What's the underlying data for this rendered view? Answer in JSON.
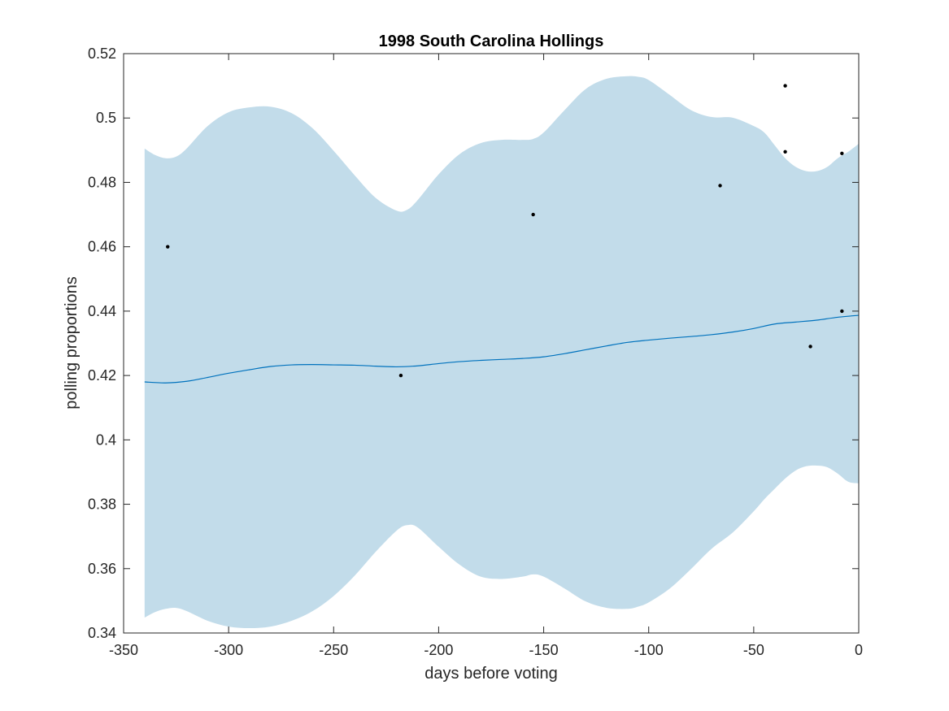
{
  "chart_data": {
    "type": "line",
    "title": "1998 South Carolina Hollings",
    "xlabel": "days before voting",
    "ylabel": "polling proportions",
    "xlim": [
      -350,
      0
    ],
    "ylim": [
      0.34,
      0.52
    ],
    "xticks": [
      -350,
      -300,
      -250,
      -200,
      -150,
      -100,
      -50,
      0
    ],
    "xtick_labels": [
      "-350",
      "-300",
      "-250",
      "-200",
      "-150",
      "-100",
      "-50",
      "0"
    ],
    "yticks": [
      0.34,
      0.36,
      0.38,
      0.4,
      0.42,
      0.44,
      0.46,
      0.48,
      0.5,
      0.52
    ],
    "ytick_labels": [
      "0.34",
      "0.36",
      "0.38",
      "0.4",
      "0.42",
      "0.44",
      "0.46",
      "0.48",
      "0.5",
      "0.52"
    ],
    "grid": false,
    "colors": {
      "band": "#c2dcea",
      "line": "#0072bd",
      "points": "#000000",
      "axes": "#262626"
    },
    "band": {
      "x": [
        -340,
        -335,
        -330,
        -325,
        -320,
        -310,
        -300,
        -290,
        -280,
        -270,
        -260,
        -250,
        -240,
        -230,
        -220,
        -215,
        -210,
        -200,
        -190,
        -180,
        -170,
        -160,
        -155,
        -150,
        -140,
        -130,
        -120,
        -110,
        -105,
        -100,
        -90,
        -80,
        -70,
        -60,
        -50,
        -45,
        -40,
        -35,
        -30,
        -25,
        -20,
        -15,
        -10,
        -5,
        0
      ],
      "upper": [
        0.4905,
        0.4885,
        0.4875,
        0.488,
        0.4905,
        0.4975,
        0.5018,
        0.5033,
        0.5035,
        0.5015,
        0.4968,
        0.4898,
        0.4822,
        0.4752,
        0.4712,
        0.4715,
        0.4745,
        0.4825,
        0.4888,
        0.4922,
        0.4932,
        0.4932,
        0.4935,
        0.4955,
        0.5025,
        0.509,
        0.5122,
        0.513,
        0.5128,
        0.5118,
        0.5072,
        0.5025,
        0.5003,
        0.5001,
        0.4975,
        0.4955,
        0.4915,
        0.4875,
        0.4848,
        0.4835,
        0.4835,
        0.4848,
        0.4875,
        0.4895,
        0.492
      ],
      "lower": [
        0.3448,
        0.3465,
        0.3475,
        0.3478,
        0.3468,
        0.3438,
        0.342,
        0.3415,
        0.342,
        0.3438,
        0.3468,
        0.3515,
        0.3578,
        0.3652,
        0.3718,
        0.3735,
        0.3728,
        0.3668,
        0.3612,
        0.3575,
        0.3568,
        0.3575,
        0.3582,
        0.3575,
        0.3538,
        0.3498,
        0.3478,
        0.3475,
        0.3482,
        0.3495,
        0.3538,
        0.3598,
        0.3662,
        0.3712,
        0.3778,
        0.3815,
        0.3848,
        0.388,
        0.3905,
        0.3918,
        0.392,
        0.3915,
        0.3895,
        0.387,
        0.3865
      ]
    },
    "series": [
      {
        "x": [
          -340,
          -330,
          -320,
          -310,
          -300,
          -290,
          -280,
          -270,
          -260,
          -250,
          -240,
          -230,
          -220,
          -210,
          -200,
          -190,
          -180,
          -170,
          -160,
          -150,
          -140,
          -130,
          -120,
          -110,
          -100,
          -90,
          -80,
          -70,
          -60,
          -50,
          -40,
          -30,
          -20,
          -10,
          0
        ],
        "y": [
          0.418,
          0.4177,
          0.4182,
          0.4194,
          0.4207,
          0.4218,
          0.4228,
          0.4233,
          0.4234,
          0.4233,
          0.4232,
          0.4229,
          0.4227,
          0.423,
          0.4237,
          0.4243,
          0.4247,
          0.425,
          0.4253,
          0.4258,
          0.4268,
          0.428,
          0.4292,
          0.4303,
          0.431,
          0.4316,
          0.4321,
          0.4327,
          0.4335,
          0.4346,
          0.436,
          0.4366,
          0.4372,
          0.4381,
          0.4387
        ]
      }
    ],
    "points": [
      {
        "x": -329,
        "y": 0.46
      },
      {
        "x": -218,
        "y": 0.42
      },
      {
        "x": -155,
        "y": 0.47
      },
      {
        "x": -66,
        "y": 0.479
      },
      {
        "x": -35,
        "y": 0.51
      },
      {
        "x": -35,
        "y": 0.4895
      },
      {
        "x": -23,
        "y": 0.429
      },
      {
        "x": -8,
        "y": 0.489
      },
      {
        "x": -8,
        "y": 0.44
      }
    ]
  }
}
